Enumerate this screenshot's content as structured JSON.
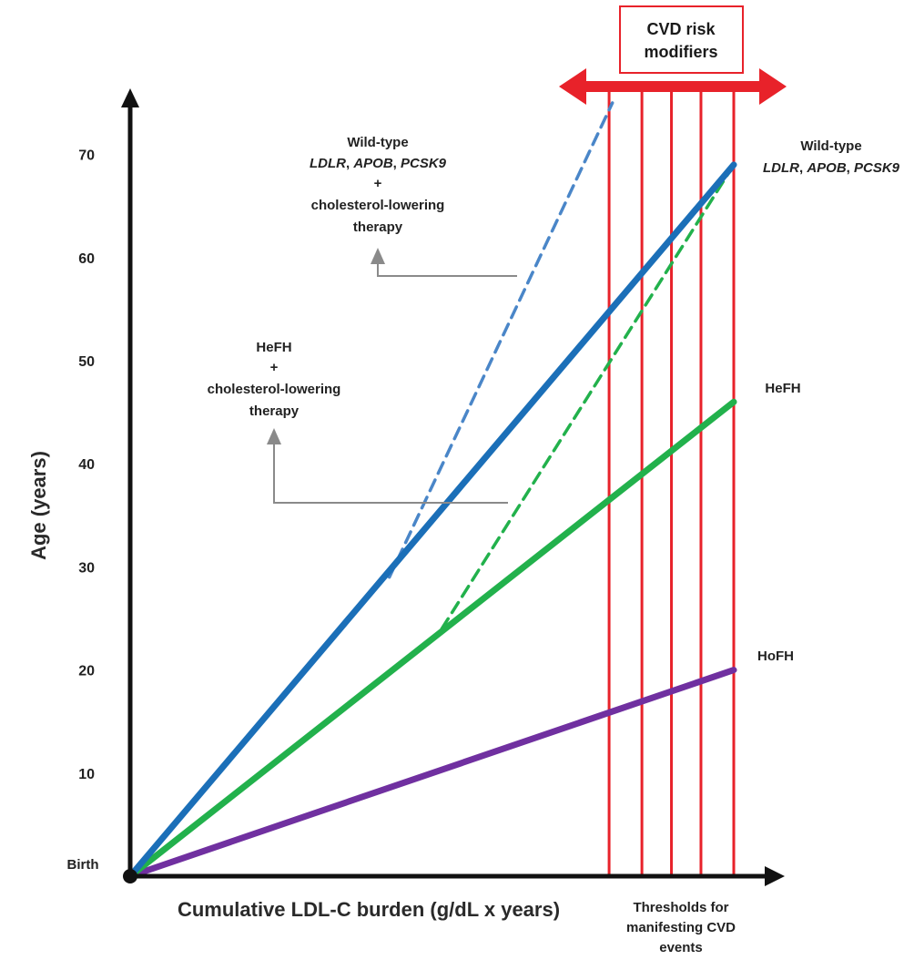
{
  "chart_data": {
    "type": "line",
    "title": "",
    "xlabel": "Cumulative LDL-C burden (g/dL x years)",
    "ylabel": "Age (years)",
    "origin_label": "Birth",
    "yticks": [
      10,
      20,
      30,
      40,
      50,
      60,
      70
    ],
    "xticks": [],
    "ylim": [
      0,
      75
    ],
    "x_units": "relative (axis shows no numbers)",
    "xlim": [
      0,
      100
    ],
    "grid": false,
    "series": [
      {
        "name": "Wild-type LDLR, APOB, PCSK9",
        "color": "#1b6fb8",
        "style": "solid",
        "points": [
          [
            0,
            0
          ],
          [
            92,
            69
          ]
        ]
      },
      {
        "name": "HeFH",
        "color": "#22b14c",
        "style": "solid",
        "points": [
          [
            0,
            0
          ],
          [
            92,
            46
          ]
        ]
      },
      {
        "name": "HoFH",
        "color": "#7030a0",
        "style": "solid",
        "points": [
          [
            0,
            0
          ],
          [
            92,
            20
          ]
        ]
      },
      {
        "name": "Wild-type LDLR, APOB, PCSK9 + cholesterol-lowering therapy",
        "color": "#4a86c8",
        "style": "dashed",
        "points": [
          [
            39.5,
            29
          ],
          [
            73.5,
            75
          ]
        ]
      },
      {
        "name": "HeFH + cholesterol-lowering therapy",
        "color": "#22b14c",
        "style": "dashed",
        "points": [
          [
            47.5,
            24
          ],
          [
            92,
            69
          ]
        ]
      }
    ],
    "thresholds": {
      "label": "Thresholds for manifesting CVD events",
      "x_values": [
        73,
        78,
        82.5,
        87,
        92
      ],
      "color": "#e8222a"
    },
    "risk_modifiers": {
      "label": "CVD risk modifiers",
      "color": "#e8222a"
    },
    "annotations": {
      "end_labels": [
        {
          "series": "Wild-type LDLR, APOB, PCSK9",
          "line1": "Wild-type",
          "line2_parts": [
            "LDLR",
            ", ",
            "APOB",
            ", ",
            "PCSK9"
          ]
        },
        {
          "series": "HeFH",
          "text": "HeFH"
        },
        {
          "series": "HoFH",
          "text": "HoFH"
        }
      ],
      "therapy_wt": [
        "Wild-type",
        "+",
        "cholesterol-lowering",
        "therapy"
      ],
      "therapy_wt_italic_line": [
        "LDLR",
        ", ",
        "APOB",
        ", ",
        "PCSK9"
      ],
      "therapy_hefh": [
        "HeFH",
        "+",
        "cholesterol-lowering",
        "therapy"
      ]
    }
  }
}
